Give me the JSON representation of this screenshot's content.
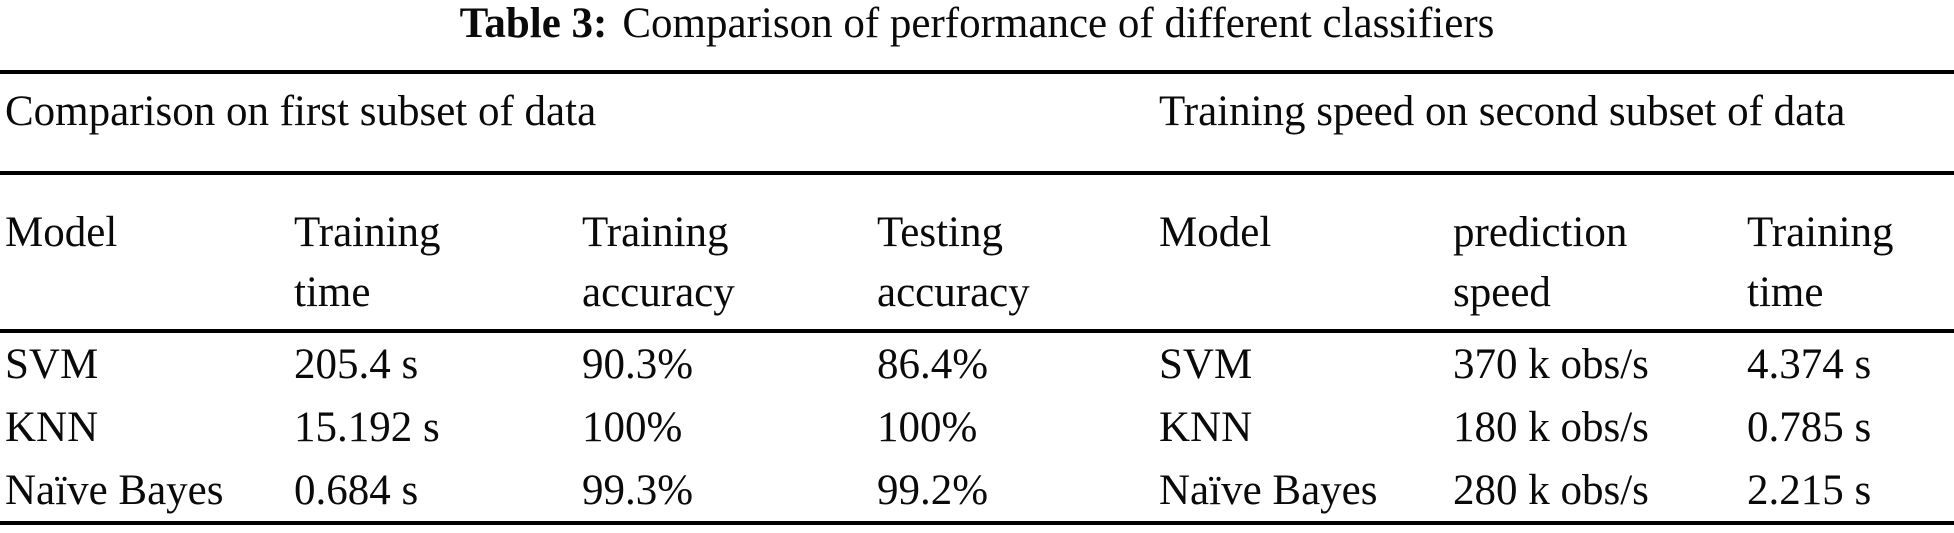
{
  "title": {
    "label": "Table 3:",
    "text": "Comparison of performance of different classifiers"
  },
  "left_table": {
    "section_title": "Comparison on first subset of data",
    "columns": [
      {
        "line1": "Model",
        "line2": ""
      },
      {
        "line1": "Training",
        "line2": "time"
      },
      {
        "line1": "Training",
        "line2": "accuracy"
      },
      {
        "line1": "Testing",
        "line2": "accuracy"
      }
    ],
    "rows": [
      [
        "SVM",
        "205.4 s",
        "90.3%",
        "86.4%"
      ],
      [
        "KNN",
        "15.192 s",
        "100%",
        "100%"
      ],
      [
        "Naïve Bayes",
        "0.684 s",
        "99.3%",
        "99.2%"
      ]
    ]
  },
  "right_table": {
    "section_title": "Training speed on second subset of data",
    "columns": [
      {
        "line1": "Model",
        "line2": ""
      },
      {
        "line1": "prediction",
        "line2": "speed"
      },
      {
        "line1": "Training",
        "line2": "time"
      }
    ],
    "rows": [
      [
        "SVM",
        "370 k obs/s",
        "4.374 s"
      ],
      [
        "KNN",
        "180 k obs/s",
        "0.785 s"
      ],
      [
        "Naïve Bayes",
        "280 k obs/s",
        "2.215 s"
      ]
    ]
  },
  "colors": {
    "text": "#0a0a0a",
    "rule": "#000000",
    "background": "#ffffff"
  }
}
